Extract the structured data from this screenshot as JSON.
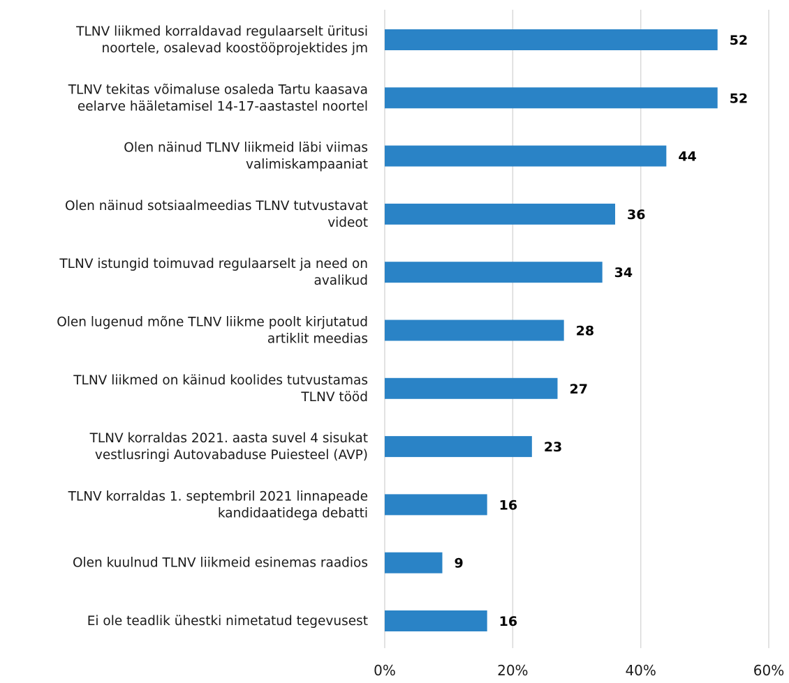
{
  "chart_data": {
    "type": "bar",
    "orientation": "horizontal",
    "categories": [
      [
        "TLNV liikmed korraldavad regulaarselt üritusi",
        "noortele, osalevad koostööprojektides jm"
      ],
      [
        "TLNV tekitas võimaluse osaleda Tartu kaasava",
        "eelarve hääletamisel 14-17-aastastel noortel"
      ],
      [
        "Olen näinud TLNV liikmeid läbi viimas",
        "valimiskampaaniat"
      ],
      [
        "Olen näinud sotsiaalmeedias TLNV tutvustavat",
        "videot"
      ],
      [
        "TLNV istungid toimuvad regulaarselt ja need on",
        "avalikud"
      ],
      [
        "Olen lugenud mõne TLNV liikme poolt kirjutatud",
        "artiklit meedias"
      ],
      [
        "TLNV liikmed on käinud koolides tutvustamas",
        "TLNV tööd"
      ],
      [
        "TLNV korraldas 2021. aasta suvel 4 sisukat",
        "vestlusringi Autovabaduse Puiesteel (AVP)"
      ],
      [
        "TLNV korraldas 1. septembril 2021 linnapeade",
        "kandidaatidega debatti"
      ],
      [
        "Olen kuulnud TLNV liikmeid esinemas raadios"
      ],
      [
        "Ei ole teadlik ühestki nimetatud tegevusest"
      ]
    ],
    "values": [
      52,
      52,
      44,
      36,
      34,
      28,
      27,
      23,
      16,
      9,
      16
    ],
    "data_labels": [
      "52",
      "52",
      "44",
      "36",
      "34",
      "28",
      "27",
      "23",
      "16",
      "9",
      "16"
    ],
    "xlim": [
      0,
      60
    ],
    "xticks": [
      0,
      20,
      40,
      60
    ],
    "xtick_labels": [
      "0%",
      "20%",
      "40%",
      "60%"
    ],
    "grid": "vertical",
    "bar_color": "#2a83c6",
    "grid_color": "#d9d9d9"
  }
}
